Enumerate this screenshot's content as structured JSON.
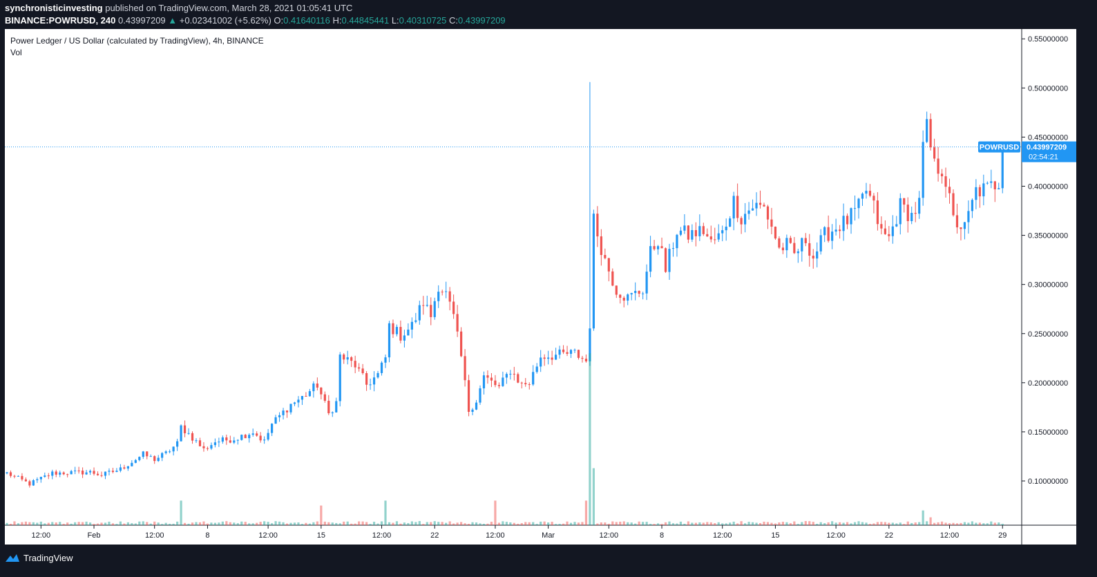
{
  "header": {
    "author": "synchronisticinvesting",
    "published_text": "published on TradingView.com, March 28, 2021 01:05:41 UTC",
    "symbol": "BINANCE:POWRUSD, 240",
    "last": "0.43997209",
    "change_arrow": "▲",
    "change": "+0.02341002 (+5.62%)",
    "open_label": "O:",
    "open": "0.41640116",
    "high_label": "H:",
    "high": "0.44845441",
    "low_label": "L:",
    "low": "0.40310725",
    "close_label": "C:",
    "close": "0.43997209"
  },
  "legend": {
    "title": "Power Ledger / US Dollar (calculated by TradingView), 4h, BINANCE",
    "vol": "Vol"
  },
  "price_tag": {
    "symbol": "POWRUSD",
    "price": "0.43997209",
    "countdown": "02:54:21"
  },
  "footer": {
    "brand": "TradingView"
  },
  "colors": {
    "up": "#2196f3",
    "down": "#ef5350",
    "vol_up": "#26a69a",
    "vol_down": "#ef5350",
    "tag": "#2196f3",
    "background": "#131722"
  },
  "chart_data": {
    "type": "candlestick",
    "title": "Power Ledger / US Dollar (calculated by TradingView), 4h, BINANCE",
    "interval": "4h",
    "ylim": [
      0.055,
      0.56
    ],
    "y_ticks": [
      "0.55000000",
      "0.50000000",
      "0.45000000",
      "0.40000000",
      "0.35000000",
      "0.30000000",
      "0.25000000",
      "0.20000000",
      "0.15000000",
      "0.10000000"
    ],
    "y_tick_values": [
      0.55,
      0.5,
      0.45,
      0.4,
      0.35,
      0.3,
      0.25,
      0.2,
      0.15,
      0.1
    ],
    "x_ticks": [
      {
        "label": "12:00",
        "bar": 9
      },
      {
        "label": "Feb",
        "bar": 23
      },
      {
        "label": "12:00",
        "bar": 39
      },
      {
        "label": "8",
        "bar": 53
      },
      {
        "label": "12:00",
        "bar": 69
      },
      {
        "label": "15",
        "bar": 83
      },
      {
        "label": "12:00",
        "bar": 99
      },
      {
        "label": "22",
        "bar": 113
      },
      {
        "label": "12:00",
        "bar": 129
      },
      {
        "label": "Mar",
        "bar": 143
      },
      {
        "label": "12:00",
        "bar": 159
      },
      {
        "label": "8",
        "bar": 173
      },
      {
        "label": "12:00",
        "bar": 189
      },
      {
        "label": "15",
        "bar": 203
      },
      {
        "label": "12:00",
        "bar": 219
      },
      {
        "label": "22",
        "bar": 233
      },
      {
        "label": "12:00",
        "bar": 249
      },
      {
        "label": "29",
        "bar": 263
      }
    ],
    "last_price": 0.43997209,
    "keypoints": [
      [
        0,
        0.108
      ],
      [
        6,
        0.097
      ],
      [
        12,
        0.108
      ],
      [
        22,
        0.109
      ],
      [
        25,
        0.106
      ],
      [
        30,
        0.112
      ],
      [
        36,
        0.127
      ],
      [
        39,
        0.122
      ],
      [
        42,
        0.128
      ],
      [
        45,
        0.138
      ],
      [
        46,
        0.155
      ],
      [
        48,
        0.148
      ],
      [
        52,
        0.132
      ],
      [
        55,
        0.14
      ],
      [
        60,
        0.143
      ],
      [
        65,
        0.15
      ],
      [
        68,
        0.14
      ],
      [
        70,
        0.158
      ],
      [
        75,
        0.178
      ],
      [
        78,
        0.185
      ],
      [
        82,
        0.198
      ],
      [
        85,
        0.168
      ],
      [
        87,
        0.18
      ],
      [
        88,
        0.227
      ],
      [
        92,
        0.218
      ],
      [
        95,
        0.198
      ],
      [
        98,
        0.208
      ],
      [
        100,
        0.225
      ],
      [
        101,
        0.258
      ],
      [
        104,
        0.248
      ],
      [
        107,
        0.258
      ],
      [
        110,
        0.282
      ],
      [
        112,
        0.268
      ],
      [
        114,
        0.3
      ],
      [
        116,
        0.29
      ],
      [
        118,
        0.266
      ],
      [
        120,
        0.226
      ],
      [
        122,
        0.172
      ],
      [
        124,
        0.182
      ],
      [
        126,
        0.206
      ],
      [
        130,
        0.195
      ],
      [
        133,
        0.213
      ],
      [
        136,
        0.198
      ],
      [
        138,
        0.2
      ],
      [
        141,
        0.227
      ],
      [
        145,
        0.228
      ],
      [
        150,
        0.23
      ],
      [
        153,
        0.222
      ],
      [
        154,
        0.26
      ],
      [
        155,
        0.365
      ],
      [
        158,
        0.325
      ],
      [
        161,
        0.295
      ],
      [
        164,
        0.286
      ],
      [
        168,
        0.295
      ],
      [
        170,
        0.332
      ],
      [
        172,
        0.346
      ],
      [
        174,
        0.315
      ],
      [
        177,
        0.355
      ],
      [
        180,
        0.35
      ],
      [
        184,
        0.355
      ],
      [
        186,
        0.342
      ],
      [
        189,
        0.352
      ],
      [
        192,
        0.385
      ],
      [
        194,
        0.368
      ],
      [
        197,
        0.38
      ],
      [
        200,
        0.378
      ],
      [
        202,
        0.36
      ],
      [
        204,
        0.336
      ],
      [
        206,
        0.34
      ],
      [
        208,
        0.33
      ],
      [
        211,
        0.346
      ],
      [
        213,
        0.328
      ],
      [
        216,
        0.35
      ],
      [
        219,
        0.358
      ],
      [
        222,
        0.365
      ],
      [
        225,
        0.378
      ],
      [
        227,
        0.396
      ],
      [
        229,
        0.378
      ],
      [
        231,
        0.352
      ],
      [
        233,
        0.347
      ],
      [
        236,
        0.38
      ],
      [
        239,
        0.37
      ],
      [
        241,
        0.382
      ],
      [
        242,
        0.44
      ],
      [
        243,
        0.458
      ],
      [
        245,
        0.42
      ],
      [
        247,
        0.418
      ],
      [
        248,
        0.405
      ],
      [
        250,
        0.365
      ],
      [
        253,
        0.357
      ],
      [
        256,
        0.395
      ],
      [
        259,
        0.397
      ],
      [
        262,
        0.405
      ],
      [
        263,
        0.44
      ]
    ],
    "spike": {
      "bar": 154,
      "high": 0.506
    },
    "volume": {
      "base": 0.003,
      "peaks": [
        [
          154,
          0.175
        ],
        [
          155,
          0.058
        ],
        [
          153,
          0.025
        ],
        [
          46,
          0.025
        ],
        [
          100,
          0.025
        ],
        [
          83,
          0.02
        ],
        [
          129,
          0.025
        ],
        [
          242,
          0.015
        ],
        [
          244,
          0.008
        ]
      ]
    }
  }
}
